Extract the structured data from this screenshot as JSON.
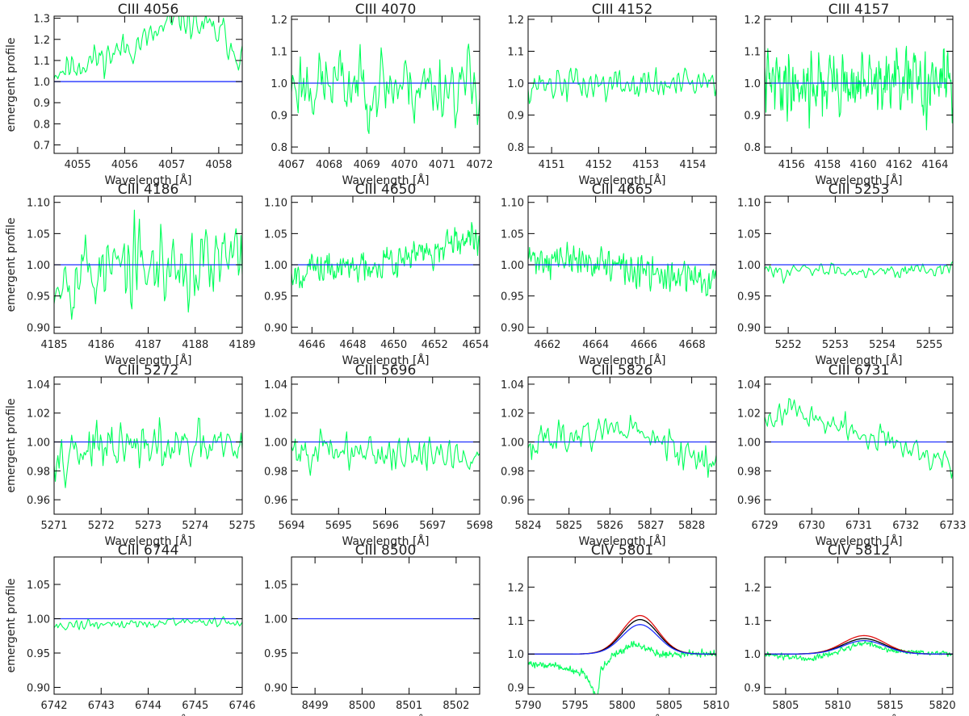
{
  "figure": {
    "ylabel": "emergent profile",
    "xlabel": "Wavelength [Å]",
    "colors": {
      "observed": "#00ff5a",
      "model_blue": "#2030ff",
      "model_red": "#e01010",
      "model_black": "#000000",
      "axes": "#000000"
    }
  },
  "chart_data": [
    {
      "type": "line",
      "title": "CIII 4056",
      "xlim": [
        4054.5,
        4058.5
      ],
      "ylim": [
        0.66,
        1.31
      ],
      "xticks": [
        4055,
        4056,
        4057,
        4058
      ],
      "xtick_labels": [
        "4055",
        "4056",
        "4057",
        "4058"
      ],
      "yticks": [
        0.7,
        0.8,
        0.9,
        1.0,
        1.1,
        1.2,
        1.3
      ],
      "ytick_labels": [
        "0.7",
        "0.8",
        "0.9",
        "1.0",
        "1.1",
        "1.2",
        "1.3"
      ],
      "series": [
        {
          "name": "observed",
          "kind": "noise",
          "n": 150,
          "seed": 11,
          "amp": 0.075,
          "trend": [
            [
              4054.5,
              1.05
            ],
            [
              4055.6,
              1.12
            ],
            [
              4056.5,
              1.2
            ],
            [
              4057.2,
              1.3
            ],
            [
              4058.1,
              1.22
            ],
            [
              4058.5,
              1.12
            ]
          ],
          "clip": true
        },
        {
          "name": "model",
          "kind": "flat",
          "value": 1.0
        }
      ]
    },
    {
      "type": "line",
      "title": "CIII 4070",
      "xlim": [
        4067,
        4072
      ],
      "ylim": [
        0.78,
        1.21
      ],
      "xticks": [
        4067,
        4068,
        4069,
        4070,
        4071,
        4072
      ],
      "xtick_labels": [
        "4067",
        "4068",
        "4069",
        "4070",
        "4071",
        "4072"
      ],
      "yticks": [
        0.8,
        0.9,
        1.0,
        1.1,
        1.2
      ],
      "ytick_labels": [
        "0.8",
        "0.9",
        "1.0",
        "1.1",
        "1.2"
      ],
      "series": [
        {
          "name": "observed",
          "kind": "noise",
          "n": 170,
          "seed": 23,
          "amp": 0.11,
          "trend": [
            [
              4067,
              1.0
            ],
            [
              4072,
              0.99
            ]
          ],
          "clip": true
        },
        {
          "name": "model",
          "kind": "flat",
          "value": 1.0
        }
      ]
    },
    {
      "type": "line",
      "title": "CIII 4152",
      "xlim": [
        4150.5,
        4154.5
      ],
      "ylim": [
        0.78,
        1.21
      ],
      "xticks": [
        4151,
        4152,
        4153,
        4154
      ],
      "xtick_labels": [
        "4151",
        "4152",
        "4153",
        "4154"
      ],
      "yticks": [
        0.8,
        0.9,
        1.0,
        1.1,
        1.2
      ],
      "ytick_labels": [
        "0.8",
        "0.9",
        "1.0",
        "1.1",
        "1.2"
      ],
      "series": [
        {
          "name": "observed",
          "kind": "noise",
          "n": 150,
          "seed": 37,
          "amp": 0.055,
          "trend": [
            [
              4150.5,
              1.0
            ],
            [
              4154.5,
              0.99
            ]
          ],
          "clip": true
        },
        {
          "name": "model",
          "kind": "flat",
          "value": 1.0
        }
      ]
    },
    {
      "type": "line",
      "title": "CIII 4157",
      "xlim": [
        4154.5,
        4165
      ],
      "ylim": [
        0.78,
        1.21
      ],
      "xticks": [
        4156,
        4158,
        4160,
        4162,
        4164
      ],
      "xtick_labels": [
        "4156",
        "4158",
        "4160",
        "4162",
        "4164"
      ],
      "yticks": [
        0.8,
        0.9,
        1.0,
        1.1,
        1.2
      ],
      "ytick_labels": [
        "0.8",
        "0.9",
        "1.0",
        "1.1",
        "1.2"
      ],
      "series": [
        {
          "name": "observed",
          "kind": "noise",
          "n": 300,
          "seed": 41,
          "amp": 0.1,
          "trend": [
            [
              4154.5,
              1.0
            ],
            [
              4165,
              1.0
            ]
          ],
          "clip": true
        },
        {
          "name": "model",
          "kind": "flat",
          "value": 1.0
        }
      ]
    },
    {
      "type": "line",
      "title": "CIII 4186",
      "xlim": [
        4185,
        4189
      ],
      "ylim": [
        0.89,
        1.11
      ],
      "xticks": [
        4185,
        4186,
        4187,
        4188,
        4189
      ],
      "xtick_labels": [
        "4185",
        "4186",
        "4187",
        "4188",
        "4189"
      ],
      "yticks": [
        0.9,
        0.95,
        1.0,
        1.05,
        1.1
      ],
      "ytick_labels": [
        "0.90",
        "0.95",
        "1.00",
        "1.05",
        "1.10"
      ],
      "series": [
        {
          "name": "observed",
          "kind": "noise",
          "n": 150,
          "seed": 53,
          "amp": 0.065,
          "trend": [
            [
              4185,
              0.99
            ],
            [
              4189,
              1.0
            ]
          ],
          "clip": true
        },
        {
          "name": "model",
          "kind": "flat",
          "value": 1.0
        }
      ]
    },
    {
      "type": "line",
      "title": "CIII 4650",
      "xlim": [
        4645,
        4654.2
      ],
      "ylim": [
        0.89,
        1.11
      ],
      "xticks": [
        4646,
        4648,
        4650,
        4652,
        4654
      ],
      "xtick_labels": [
        "4646",
        "4648",
        "4650",
        "4652",
        "4654"
      ],
      "yticks": [
        0.9,
        0.95,
        1.0,
        1.05,
        1.1
      ],
      "ytick_labels": [
        "0.90",
        "0.95",
        "1.00",
        "1.05",
        "1.10"
      ],
      "series": [
        {
          "name": "observed",
          "kind": "noise",
          "n": 280,
          "seed": 67,
          "amp": 0.025,
          "trend": [
            [
              4645,
              0.99
            ],
            [
              4648,
              0.995
            ],
            [
              4650,
              1.01
            ],
            [
              4652,
              1.02
            ],
            [
              4654.2,
              1.04
            ]
          ],
          "clip": true
        },
        {
          "name": "model",
          "kind": "flat",
          "value": 1.0
        }
      ]
    },
    {
      "type": "line",
      "title": "CIII 4665",
      "xlim": [
        4661.2,
        4669
      ],
      "ylim": [
        0.89,
        1.11
      ],
      "xticks": [
        4662,
        4664,
        4666,
        4668
      ],
      "xtick_labels": [
        "4662",
        "4664",
        "4666",
        "4668"
      ],
      "yticks": [
        0.9,
        0.95,
        1.0,
        1.05,
        1.1
      ],
      "ytick_labels": [
        "0.90",
        "0.95",
        "1.00",
        "1.05",
        "1.10"
      ],
      "series": [
        {
          "name": "observed",
          "kind": "noise",
          "n": 260,
          "seed": 71,
          "amp": 0.025,
          "trend": [
            [
              4661.2,
              1.01
            ],
            [
              4664,
              1.005
            ],
            [
              4666,
              0.985
            ],
            [
              4669,
              0.975
            ]
          ],
          "clip": true
        },
        {
          "name": "model",
          "kind": "flat",
          "value": 1.0
        }
      ]
    },
    {
      "type": "line",
      "title": "CIII 5253",
      "xlim": [
        5251.5,
        5255.5
      ],
      "ylim": [
        0.89,
        1.11
      ],
      "xticks": [
        5252,
        5253,
        5254,
        5255
      ],
      "xtick_labels": [
        "5252",
        "5253",
        "5254",
        "5255"
      ],
      "yticks": [
        0.9,
        0.95,
        1.0,
        1.05,
        1.1
      ],
      "ytick_labels": [
        "0.90",
        "0.95",
        "1.00",
        "1.05",
        "1.10"
      ],
      "series": [
        {
          "name": "observed",
          "kind": "noise",
          "n": 150,
          "seed": 83,
          "amp": 0.011,
          "trend": [
            [
              5251.5,
              0.99
            ],
            [
              5255.5,
              0.993
            ]
          ],
          "clip": true
        },
        {
          "name": "model",
          "kind": "flat",
          "value": 1.0
        }
      ]
    },
    {
      "type": "line",
      "title": "CIII 5272",
      "xlim": [
        5271,
        5275
      ],
      "ylim": [
        0.95,
        1.045
      ],
      "xticks": [
        5271,
        5272,
        5273,
        5274,
        5275
      ],
      "xtick_labels": [
        "5271",
        "5272",
        "5273",
        "5274",
        "5275"
      ],
      "yticks": [
        0.96,
        0.98,
        1.0,
        1.02,
        1.04
      ],
      "ytick_labels": [
        "0.96",
        "0.98",
        "1.00",
        "1.02",
        "1.04"
      ],
      "series": [
        {
          "name": "observed",
          "kind": "noise",
          "n": 150,
          "seed": 97,
          "amp": 0.016,
          "trend": [
            [
              5271,
              0.995
            ],
            [
              5275,
              0.995
            ]
          ],
          "clip": true
        },
        {
          "name": "model",
          "kind": "flat",
          "value": 1.0
        }
      ]
    },
    {
      "type": "line",
      "title": "CIII 5696",
      "xlim": [
        5694,
        5698
      ],
      "ylim": [
        0.95,
        1.045
      ],
      "xticks": [
        5694,
        5695,
        5696,
        5697,
        5698
      ],
      "xtick_labels": [
        "5694",
        "5695",
        "5696",
        "5697",
        "5698"
      ],
      "yticks": [
        0.96,
        0.98,
        1.0,
        1.02,
        1.04
      ],
      "ytick_labels": [
        "0.96",
        "0.98",
        "1.00",
        "1.02",
        "1.04"
      ],
      "series": [
        {
          "name": "observed",
          "kind": "noise",
          "n": 150,
          "seed": 101,
          "amp": 0.012,
          "trend": [
            [
              5694,
              0.995
            ],
            [
              5698,
              0.99
            ]
          ],
          "clip": true
        },
        {
          "name": "model",
          "kind": "flat",
          "value": 1.0
        }
      ]
    },
    {
      "type": "line",
      "title": "CIII 5826",
      "xlim": [
        5824,
        5828.6
      ],
      "ylim": [
        0.95,
        1.045
      ],
      "xticks": [
        5824,
        5825,
        5826,
        5827,
        5828
      ],
      "xtick_labels": [
        "5824",
        "5825",
        "5826",
        "5827",
        "5828"
      ],
      "yticks": [
        0.96,
        0.98,
        1.0,
        1.02,
        1.04
      ],
      "ytick_labels": [
        "0.96",
        "0.98",
        "1.00",
        "1.02",
        "1.04"
      ],
      "series": [
        {
          "name": "observed",
          "kind": "noise",
          "n": 160,
          "seed": 113,
          "amp": 0.011,
          "trend": [
            [
              5824,
              1.0
            ],
            [
              5826.5,
              1.01
            ],
            [
              5827.5,
              0.995
            ],
            [
              5828.6,
              0.985
            ]
          ],
          "clip": true
        },
        {
          "name": "model",
          "kind": "flat",
          "value": 1.0
        }
      ]
    },
    {
      "type": "line",
      "title": "CIII 6731",
      "xlim": [
        6729,
        6733
      ],
      "ylim": [
        0.95,
        1.045
      ],
      "xticks": [
        6729,
        6730,
        6731,
        6732,
        6733
      ],
      "xtick_labels": [
        "6729",
        "6730",
        "6731",
        "6732",
        "6733"
      ],
      "yticks": [
        0.96,
        0.98,
        1.0,
        1.02,
        1.04
      ],
      "ytick_labels": [
        "0.96",
        "0.98",
        "1.00",
        "1.02",
        "1.04"
      ],
      "series": [
        {
          "name": "observed",
          "kind": "noise",
          "n": 140,
          "seed": 127,
          "amp": 0.009,
          "trend": [
            [
              6729,
              1.015
            ],
            [
              6729.6,
              1.025
            ],
            [
              6730.5,
              1.01
            ],
            [
              6731.5,
              1.0
            ],
            [
              6732.2,
              0.995
            ],
            [
              6733,
              0.985
            ]
          ],
          "clip": true
        },
        {
          "name": "model",
          "kind": "flat",
          "value": 1.0
        }
      ]
    },
    {
      "type": "line",
      "title": "CIII 6744",
      "xlim": [
        6742,
        6746
      ],
      "ylim": [
        0.89,
        1.09
      ],
      "xticks": [
        6742,
        6743,
        6744,
        6745,
        6746
      ],
      "xtick_labels": [
        "6742",
        "6743",
        "6744",
        "6745",
        "6746"
      ],
      "yticks": [
        0.9,
        0.95,
        1.0,
        1.05
      ],
      "ytick_labels": [
        "0.90",
        "0.95",
        "1.00",
        "1.05"
      ],
      "series": [
        {
          "name": "observed",
          "kind": "noise",
          "n": 150,
          "seed": 131,
          "amp": 0.007,
          "trend": [
            [
              6742,
              0.99
            ],
            [
              6745,
              0.995
            ],
            [
              6746,
              0.995
            ]
          ],
          "clip": true
        },
        {
          "name": "model",
          "kind": "flat",
          "value": 1.0
        }
      ]
    },
    {
      "type": "line",
      "title": "CIII 8500",
      "xlim": [
        8498.5,
        8502.5
      ],
      "ylim": [
        0.89,
        1.09
      ],
      "xticks": [
        8499,
        8500,
        8501,
        8502
      ],
      "xtick_labels": [
        "8499",
        "8500",
        "8501",
        "8502"
      ],
      "yticks": [
        0.9,
        0.95,
        1.0,
        1.05
      ],
      "ytick_labels": [
        "0.90",
        "0.95",
        "1.00",
        "1.05"
      ],
      "series": [
        {
          "name": "model",
          "kind": "flat",
          "value": 1.0
        }
      ]
    },
    {
      "type": "line",
      "title": "CIV 5801",
      "xlim": [
        5790,
        5810
      ],
      "ylim": [
        0.88,
        1.29
      ],
      "xticks": [
        5790,
        5795,
        5800,
        5805,
        5810
      ],
      "xtick_labels": [
        "5790",
        "5795",
        "5800",
        "5805",
        "5810"
      ],
      "yticks": [
        0.9,
        1.0,
        1.1,
        1.2
      ],
      "ytick_labels": [
        "0.9",
        "1.0",
        "1.1",
        "1.2"
      ],
      "series": [
        {
          "name": "observed",
          "kind": "noise",
          "n": 420,
          "seed": 139,
          "amp": 0.01,
          "trend": [
            [
              5790,
              0.97
            ],
            [
              5793,
              0.965
            ],
            [
              5796,
              0.94
            ],
            [
              5797.4,
              0.87
            ],
            [
              5797.7,
              0.95
            ],
            [
              5799,
              0.995
            ],
            [
              5801,
              1.03
            ],
            [
              5802.5,
              1.02
            ],
            [
              5804,
              1.0
            ],
            [
              5810,
              1.0
            ]
          ],
          "clip": true
        },
        {
          "name": "model red",
          "kind": "gauss",
          "center": 5801.9,
          "width": 1.9,
          "peak": 0.115,
          "color": "#e01010"
        },
        {
          "name": "model black",
          "kind": "gauss",
          "center": 5801.9,
          "width": 1.9,
          "peak": 0.103,
          "color": "#000000"
        },
        {
          "name": "model blue",
          "kind": "gauss",
          "center": 5801.9,
          "width": 1.9,
          "peak": 0.088,
          "color": "#2030ff"
        }
      ]
    },
    {
      "type": "line",
      "title": "CIV 5812",
      "xlim": [
        5803,
        5821
      ],
      "ylim": [
        0.88,
        1.29
      ],
      "xticks": [
        5805,
        5810,
        5815,
        5820
      ],
      "xtick_labels": [
        "5805",
        "5810",
        "5815",
        "5820"
      ],
      "yticks": [
        0.9,
        1.0,
        1.1,
        1.2
      ],
      "ytick_labels": [
        "0.9",
        "1.0",
        "1.1",
        "1.2"
      ],
      "series": [
        {
          "name": "observed",
          "kind": "noise",
          "n": 380,
          "seed": 149,
          "amp": 0.008,
          "trend": [
            [
              5803,
              1.0
            ],
            [
              5807.5,
              0.985
            ],
            [
              5810,
              1.005
            ],
            [
              5812.5,
              1.035
            ],
            [
              5815,
              1.01
            ],
            [
              5821,
              1.0
            ]
          ],
          "clip": true
        },
        {
          "name": "model red",
          "kind": "gauss",
          "center": 5812.5,
          "width": 2.0,
          "peak": 0.055,
          "color": "#e01010"
        },
        {
          "name": "model black",
          "kind": "gauss",
          "center": 5812.5,
          "width": 2.0,
          "peak": 0.046,
          "color": "#000000"
        },
        {
          "name": "model blue",
          "kind": "gauss",
          "center": 5812.5,
          "width": 2.0,
          "peak": 0.04,
          "color": "#2030ff"
        }
      ]
    }
  ]
}
